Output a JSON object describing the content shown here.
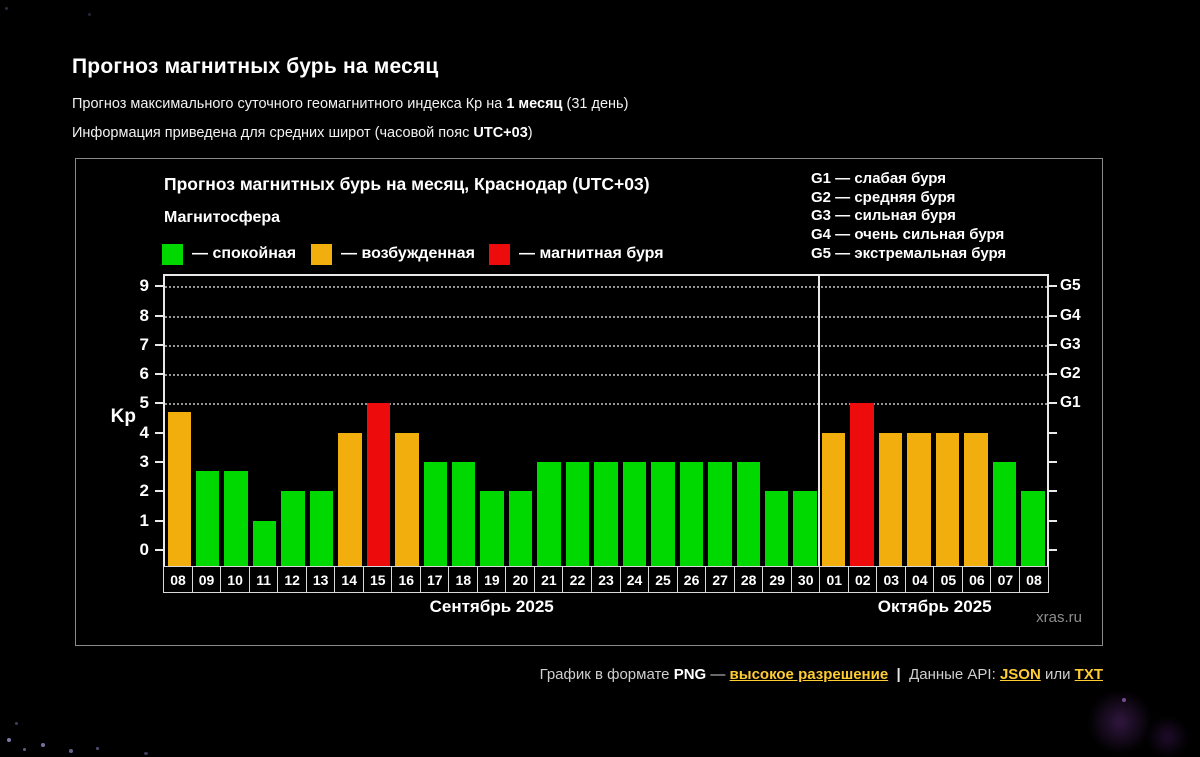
{
  "header": {
    "title": "Прогноз магнитных бурь на месяц",
    "line1_pre": "Прогноз максимального суточного геомагнитного индекса Кр на ",
    "line1_bold": "1 месяц",
    "line1_post": " (31 день)",
    "line2_pre": "Информация приведена для средних широт (часовой пояс ",
    "line2_bold": "UTC+03",
    "line2_post": ")"
  },
  "panel": {
    "chart_title": "Прогноз магнитных бурь на месяц, Краснодар (UTC+03)",
    "legend": {
      "title": "Магнитосфера",
      "items": [
        {
          "label": "— спокойная",
          "status": "quiet"
        },
        {
          "label": "— возбужденная",
          "status": "excited"
        },
        {
          "label": "— магнитная буря",
          "status": "storm"
        }
      ]
    },
    "g_legend": [
      "G1 — слабая буря",
      "G2 — средняя буря",
      "G3 — сильная буря",
      "G4 — очень сильная буря",
      "G5 — экстремальная буря"
    ],
    "watermark": "xras.ru"
  },
  "chart_data": {
    "type": "bar",
    "title": "Прогноз магнитных бурь на месяц, Краснодар (UTC+03)",
    "ylabel": "Kp",
    "xlabel": "",
    "ylim": [
      0,
      9
    ],
    "y_ticks": [
      0,
      1,
      2,
      3,
      4,
      5,
      6,
      7,
      8,
      9
    ],
    "gridlines_at": [
      5,
      6,
      7,
      8,
      9
    ],
    "grid": "dotted horizontal lines at Kp 5-9 (storm levels G1-G5)",
    "legend_position": "top-left",
    "right_axis_labels": [
      {
        "kp": 5,
        "label": "G1"
      },
      {
        "kp": 6,
        "label": "G2"
      },
      {
        "kp": 7,
        "label": "G3"
      },
      {
        "kp": 8,
        "label": "G4"
      },
      {
        "kp": 9,
        "label": "G5"
      }
    ],
    "categories": [
      "08",
      "09",
      "10",
      "11",
      "12",
      "13",
      "14",
      "15",
      "16",
      "17",
      "18",
      "19",
      "20",
      "21",
      "22",
      "23",
      "24",
      "25",
      "26",
      "27",
      "28",
      "29",
      "30",
      "01",
      "02",
      "03",
      "04",
      "05",
      "06",
      "07",
      "08"
    ],
    "values": [
      4.7,
      2.7,
      2.7,
      1,
      2,
      2,
      4,
      5,
      4,
      3,
      3,
      2,
      2,
      3,
      3,
      3,
      3,
      3,
      3,
      3,
      3,
      2,
      2,
      4,
      5,
      4,
      4,
      4,
      4,
      3,
      2
    ],
    "statuses": [
      "excited",
      "quiet",
      "quiet",
      "quiet",
      "quiet",
      "quiet",
      "excited",
      "storm",
      "excited",
      "quiet",
      "quiet",
      "quiet",
      "quiet",
      "quiet",
      "quiet",
      "quiet",
      "quiet",
      "quiet",
      "quiet",
      "quiet",
      "quiet",
      "quiet",
      "quiet",
      "excited",
      "storm",
      "excited",
      "excited",
      "excited",
      "excited",
      "quiet",
      "quiet"
    ],
    "colors": {
      "quiet": "#00D900",
      "excited": "#F2AE0C",
      "storm": "#EE0B0B"
    },
    "months": [
      {
        "label": "Сентябрь 2025",
        "days": 23
      },
      {
        "label": "Октябрь 2025",
        "days": 8
      }
    ]
  },
  "footer": {
    "text1": "График в формате ",
    "png": "PNG",
    "dash": " — ",
    "link_hi_res": "высокое разрешение",
    "sep": "  |  ",
    "api_label": "Данные API: ",
    "link_json": "JSON",
    "or_word": " или ",
    "link_txt": "TXT",
    "link_color": "#FFCC33"
  }
}
